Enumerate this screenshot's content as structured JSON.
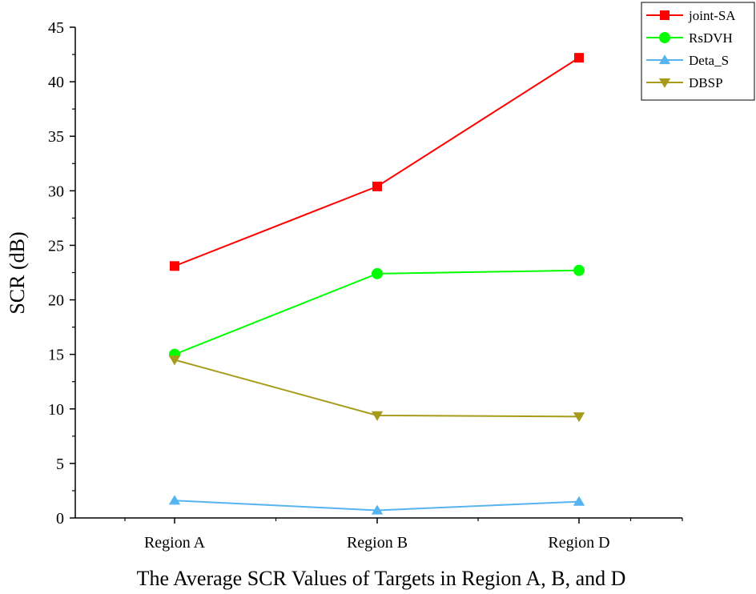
{
  "chart_data": {
    "type": "line",
    "title": "",
    "xlabel": "The Average SCR Values of Targets in Region A, B, and D",
    "ylabel": "SCR (dB)",
    "categories": [
      "Region A",
      "Region B",
      "Region D"
    ],
    "ylim": [
      0,
      45
    ],
    "yticks": [
      0,
      5,
      10,
      15,
      20,
      25,
      30,
      35,
      40,
      45
    ],
    "grid": false,
    "legend_position": "top-right",
    "series": [
      {
        "name": "joint-SA",
        "values": [
          23.1,
          30.4,
          42.2
        ],
        "color": "#ff0000",
        "marker": "square"
      },
      {
        "name": "RsDVH",
        "values": [
          15.0,
          22.4,
          22.7
        ],
        "color": "#00ff00",
        "marker": "circle"
      },
      {
        "name": "Deta_S",
        "values": [
          1.6,
          0.7,
          1.5
        ],
        "color": "#56b4f0",
        "marker": "triangle-up"
      },
      {
        "name": "DBSP",
        "values": [
          14.5,
          9.4,
          9.3
        ],
        "color": "#a89b1a",
        "marker": "triangle-down"
      }
    ]
  }
}
